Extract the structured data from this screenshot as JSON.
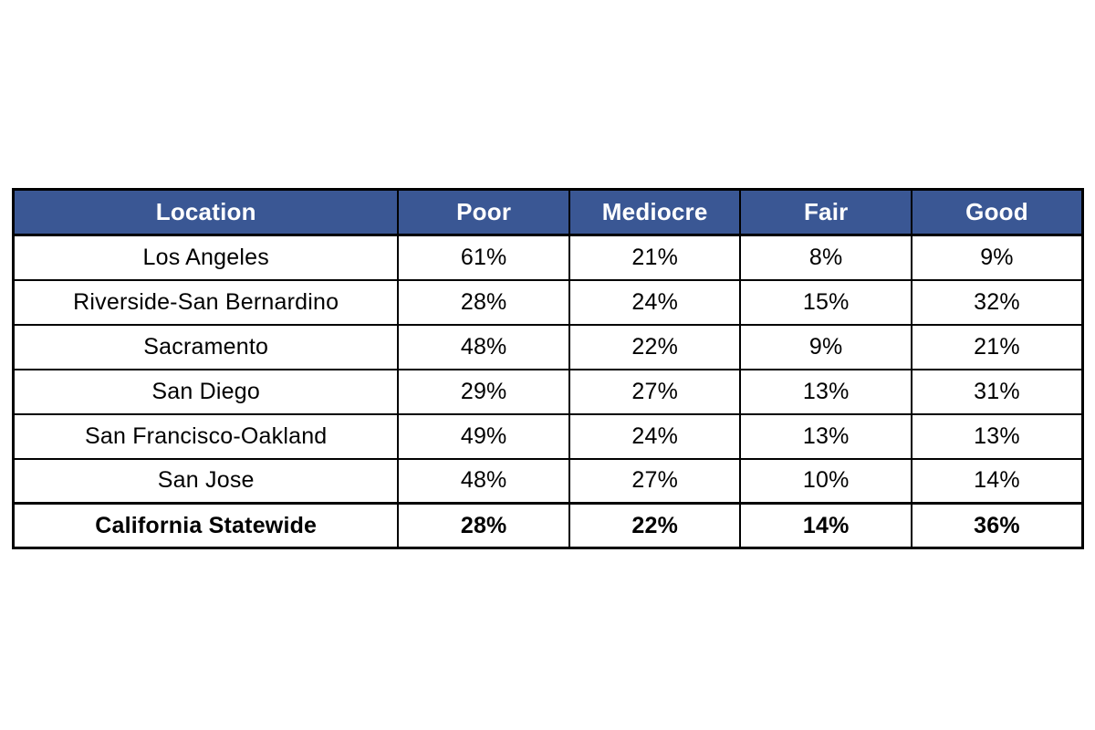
{
  "table": {
    "columns": [
      "Location",
      "Poor",
      "Mediocre",
      "Fair",
      "Good"
    ],
    "rows": [
      {
        "location": "Los Angeles",
        "values": [
          "61%",
          "21%",
          "8%",
          "9%"
        ]
      },
      {
        "location": "Riverside-San Bernardino",
        "values": [
          "28%",
          "24%",
          "15%",
          "32%"
        ]
      },
      {
        "location": "Sacramento",
        "values": [
          "48%",
          "22%",
          "9%",
          "21%"
        ]
      },
      {
        "location": "San Diego",
        "values": [
          "29%",
          "27%",
          "13%",
          "31%"
        ]
      },
      {
        "location": "San Francisco-Oakland",
        "values": [
          "49%",
          "24%",
          "13%",
          "13%"
        ]
      },
      {
        "location": "San Jose",
        "values": [
          "48%",
          "27%",
          "10%",
          "14%"
        ]
      }
    ],
    "footer": {
      "location": "California Statewide",
      "values": [
        "28%",
        "22%",
        "14%",
        "36%"
      ]
    }
  },
  "colors": {
    "header_bg": "#3A5794",
    "header_text": "#FFFFFF",
    "border": "#000000",
    "cell_bg": "#FFFFFF"
  },
  "chart_data": {
    "type": "table",
    "title": "",
    "categories": [
      "Poor",
      "Mediocre",
      "Fair",
      "Good"
    ],
    "series": [
      {
        "name": "Los Angeles",
        "values": [
          61,
          21,
          8,
          9
        ]
      },
      {
        "name": "Riverside-San Bernardino",
        "values": [
          28,
          24,
          15,
          32
        ]
      },
      {
        "name": "Sacramento",
        "values": [
          48,
          22,
          9,
          21
        ]
      },
      {
        "name": "San Diego",
        "values": [
          29,
          27,
          13,
          31
        ]
      },
      {
        "name": "San Francisco-Oakland",
        "values": [
          49,
          24,
          13,
          13
        ]
      },
      {
        "name": "San Jose",
        "values": [
          48,
          27,
          10,
          14
        ]
      },
      {
        "name": "California Statewide",
        "values": [
          28,
          22,
          14,
          36
        ]
      }
    ],
    "unit": "%",
    "layout": {
      "header_fill": "#3A5794",
      "footer_bold": true,
      "grid": true
    }
  }
}
